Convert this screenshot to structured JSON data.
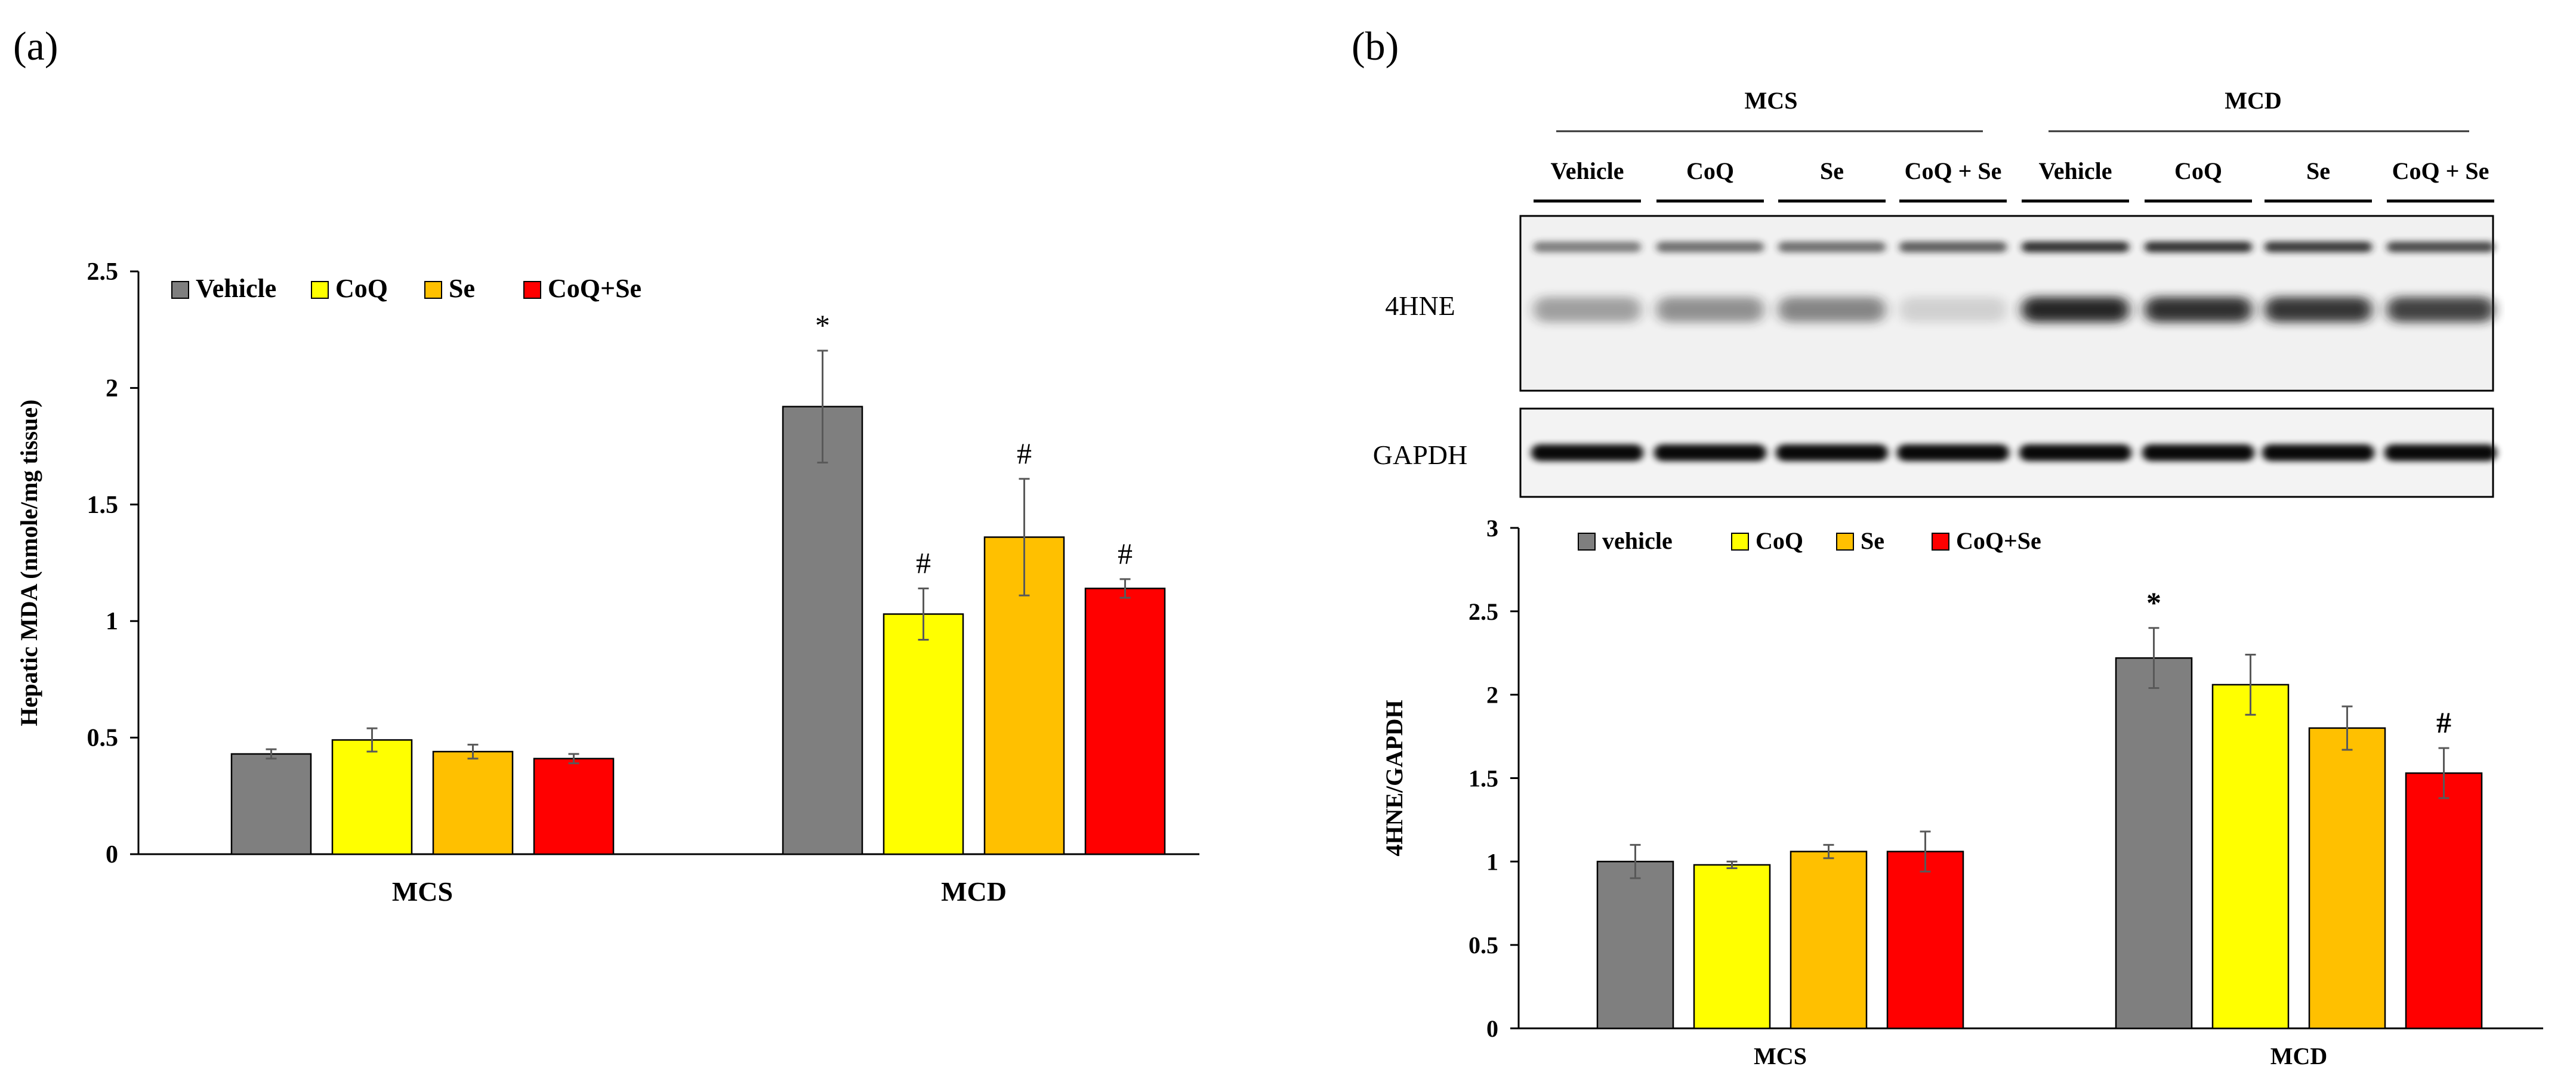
{
  "panel_a": {
    "label": "(a)"
  },
  "panel_b": {
    "label": "(b)",
    "blot": {
      "group_labels": [
        "MCS",
        "MCD"
      ],
      "lane_labels": [
        "Vehicle",
        "CoQ",
        "Se",
        "CoQ + Se",
        "Vehicle",
        "CoQ",
        "Se",
        "CoQ + Se"
      ],
      "row_labels": [
        "4HNE",
        "GAPDH"
      ]
    }
  },
  "colors": {
    "vehicle": "#7f7f7f",
    "coq": "#ffff00",
    "se": "#ffc000",
    "coq_se": "#ff0000"
  },
  "chart_data": [
    {
      "type": "bar",
      "title": "",
      "xlabel": "",
      "ylabel": "Hepatic MDA (nmole/mg tissue)",
      "ylim": [
        0,
        2.5
      ],
      "yticks": [
        "0",
        "0.5",
        "1",
        "1.5",
        "2",
        "2.5"
      ],
      "categories": [
        "MCS",
        "MCD"
      ],
      "legend_position": "top-left",
      "series": [
        {
          "name": "Vehicle",
          "color": "#7f7f7f",
          "values": [
            0.43,
            1.92
          ],
          "errors": [
            0.02,
            0.24
          ],
          "annotations": [
            "",
            "*"
          ]
        },
        {
          "name": "CoQ",
          "color": "#ffff00",
          "values": [
            0.49,
            1.03
          ],
          "errors": [
            0.05,
            0.11
          ],
          "annotations": [
            "",
            "#"
          ]
        },
        {
          "name": "Se",
          "color": "#ffc000",
          "values": [
            0.44,
            1.36
          ],
          "errors": [
            0.03,
            0.25
          ],
          "annotations": [
            "",
            "#"
          ]
        },
        {
          "name": "CoQ+Se",
          "color": "#ff0000",
          "values": [
            0.41,
            1.14
          ],
          "errors": [
            0.02,
            0.04
          ],
          "annotations": [
            "",
            "#"
          ]
        }
      ]
    },
    {
      "type": "bar",
      "title": "",
      "xlabel": "",
      "ylabel": "4HNE/GAPDH",
      "ylim": [
        0,
        3
      ],
      "yticks": [
        "0",
        "0.5",
        "1",
        "1.5",
        "2",
        "2.5",
        "3"
      ],
      "categories": [
        "MCS",
        "MCD"
      ],
      "legend_position": "top-left",
      "series": [
        {
          "name": "vehicle",
          "color": "#7f7f7f",
          "values": [
            1.0,
            2.22
          ],
          "errors": [
            0.1,
            0.18
          ],
          "annotations": [
            "",
            "*"
          ]
        },
        {
          "name": "CoQ",
          "color": "#ffff00",
          "values": [
            0.98,
            2.06
          ],
          "errors": [
            0.02,
            0.18
          ],
          "annotations": [
            "",
            ""
          ]
        },
        {
          "name": "Se",
          "color": "#ffc000",
          "values": [
            1.06,
            1.8
          ],
          "errors": [
            0.04,
            0.13
          ],
          "annotations": [
            "",
            ""
          ]
        },
        {
          "name": "CoQ+Se",
          "color": "#ff0000",
          "values": [
            1.06,
            1.53
          ],
          "errors": [
            0.12,
            0.15
          ],
          "annotations": [
            "",
            "#"
          ]
        }
      ]
    }
  ]
}
